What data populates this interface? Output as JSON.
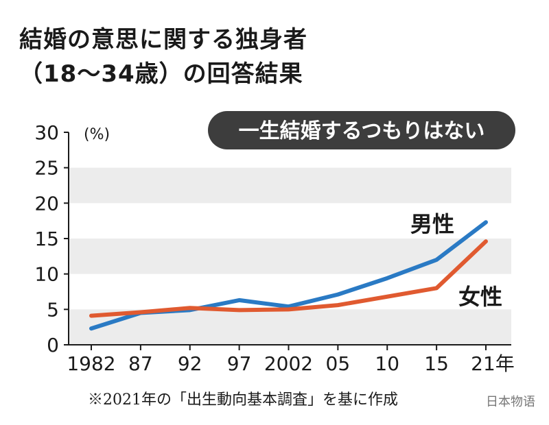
{
  "title_line1": "結婚の意思に関する独身者",
  "title_line2": "（18〜34歳）の回答結果",
  "footnote": "※2021年の「出生動向基本調査」を基に作成",
  "watermark": "日本物语",
  "chart_data": {
    "type": "line",
    "subtitle": "一生結婚するつもりはない",
    "ylabel": "(%)",
    "xlabel": "",
    "ylim": [
      0,
      30
    ],
    "yticks": [
      "0",
      "5",
      "10",
      "15",
      "20",
      "25",
      "30"
    ],
    "categories": [
      "1982",
      "87",
      "92",
      "97",
      "2002",
      "05",
      "10",
      "15",
      "21年"
    ],
    "grid": "alternating bands",
    "series": [
      {
        "name": "男性",
        "color": "#2a7ac4",
        "values": [
          2.3,
          4.5,
          4.9,
          6.3,
          5.4,
          7.1,
          9.4,
          12.0,
          17.3
        ]
      },
      {
        "name": "女性",
        "color": "#e05a30",
        "values": [
          4.1,
          4.6,
          5.2,
          4.9,
          5.0,
          5.6,
          6.8,
          8.0,
          14.6
        ]
      }
    ]
  }
}
